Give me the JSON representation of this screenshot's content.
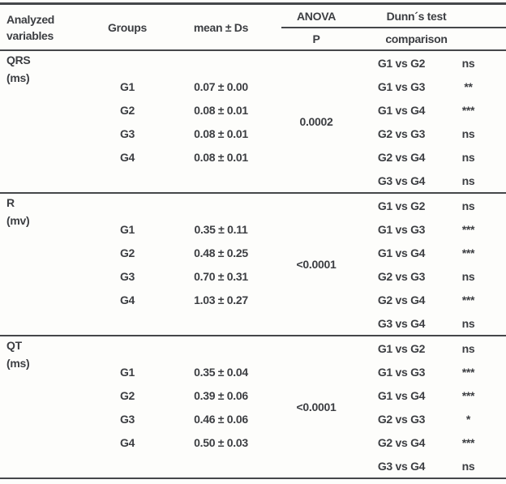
{
  "header": {
    "analyzed_line1": "Analyzed",
    "analyzed_line2": "variables",
    "groups": "Groups",
    "mean": "mean ± Ds",
    "anova": "ANOVA",
    "p": "P",
    "dunns": "Dunn´s test",
    "comparison": "comparison"
  },
  "colors": {
    "text": "#3c3e42",
    "rule_lines": "#45474a",
    "background": "#fdfdfb"
  },
  "sections": [
    {
      "variable": "QRS",
      "unit": "(ms)",
      "anova_p": "0.0002",
      "groups": [
        {
          "name": "G1",
          "mean": "0.07 ± 0.00"
        },
        {
          "name": "G2",
          "mean": "0.08 ± 0.01"
        },
        {
          "name": "G3",
          "mean": "0.08 ± 0.01"
        },
        {
          "name": "G4",
          "mean": "0.08 ± 0.01"
        }
      ],
      "comparisons": [
        {
          "pair": "G1 vs G2",
          "significance": "ns"
        },
        {
          "pair": "G1 vs G3",
          "significance": "**"
        },
        {
          "pair": "G1 vs G4",
          "significance": "***"
        },
        {
          "pair": "G2 vs G3",
          "significance": "ns"
        },
        {
          "pair": "G2 vs G4",
          "significance": "ns"
        },
        {
          "pair": "G3 vs G4",
          "significance": "ns"
        }
      ]
    },
    {
      "variable": "R",
      "unit": "(mv)",
      "anova_p": "<0.0001",
      "groups": [
        {
          "name": "G1",
          "mean": "0.35 ± 0.11"
        },
        {
          "name": "G2",
          "mean": "0.48 ± 0.25"
        },
        {
          "name": "G3",
          "mean": "0.70 ± 0.31"
        },
        {
          "name": "G4",
          "mean": "1.03 ± 0.27"
        }
      ],
      "comparisons": [
        {
          "pair": "G1 vs G2",
          "significance": "ns"
        },
        {
          "pair": "G1 vs G3",
          "significance": "***"
        },
        {
          "pair": "G1 vs G4",
          "significance": "***"
        },
        {
          "pair": "G2 vs G3",
          "significance": "ns"
        },
        {
          "pair": "G2 vs G4",
          "significance": "***"
        },
        {
          "pair": "G3 vs G4",
          "significance": "ns"
        }
      ]
    },
    {
      "variable": "QT",
      "unit": "(ms)",
      "anova_p": "<0.0001",
      "groups": [
        {
          "name": "G1",
          "mean": "0.35 ± 0.04"
        },
        {
          "name": "G2",
          "mean": "0.39 ± 0.06"
        },
        {
          "name": "G3",
          "mean": "0.46 ± 0.06"
        },
        {
          "name": "G4",
          "mean": "0.50 ± 0.03"
        }
      ],
      "comparisons": [
        {
          "pair": "G1 vs G2",
          "significance": "ns"
        },
        {
          "pair": "G1 vs G3",
          "significance": "***"
        },
        {
          "pair": "G1 vs G4",
          "significance": "***"
        },
        {
          "pair": "G2 vs G3",
          "significance": "*"
        },
        {
          "pair": "G2 vs G4",
          "significance": "***"
        },
        {
          "pair": "G3 vs G4",
          "significance": "ns"
        }
      ]
    }
  ]
}
